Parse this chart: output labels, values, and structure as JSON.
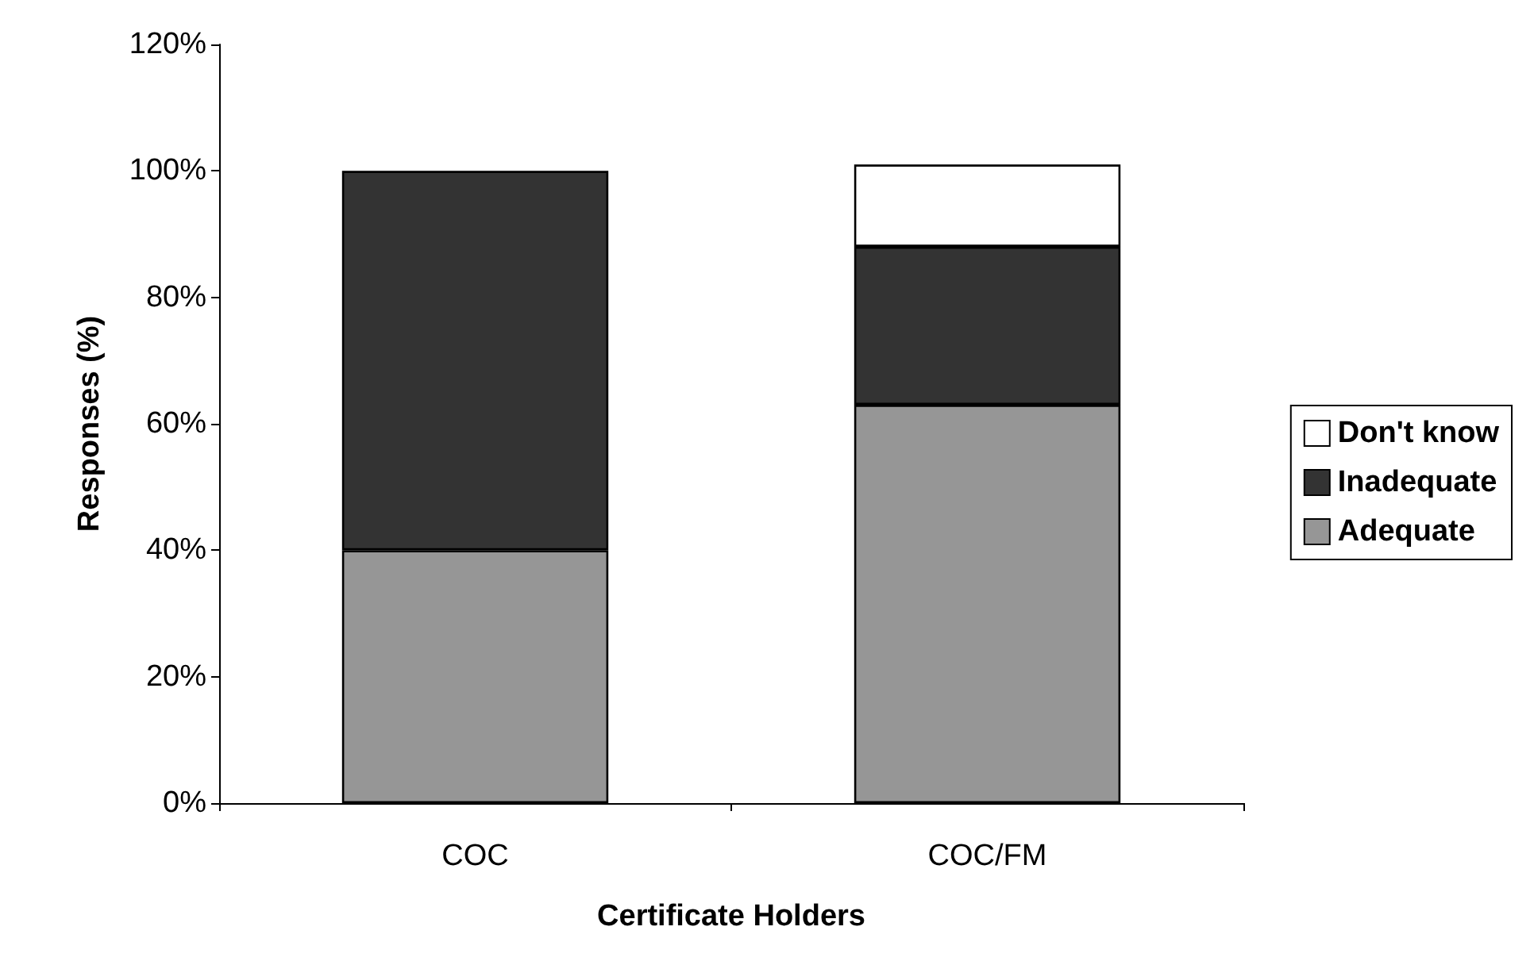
{
  "chart_data": {
    "type": "bar",
    "stacked": true,
    "xlabel": "Certificate Holders",
    "ylabel": "Responses (%)",
    "categories": [
      "COC",
      "COC/FM"
    ],
    "series": [
      {
        "name": "Adequate",
        "color": "#969696",
        "values": [
          40,
          63
        ]
      },
      {
        "name": "Inadequate",
        "color": "#333333",
        "values": [
          60,
          25
        ]
      },
      {
        "name": "Don't know",
        "color": "#ffffff",
        "values": [
          null,
          13
        ]
      }
    ],
    "ylim": [
      0,
      120
    ],
    "yticks": [
      {
        "value": 0,
        "label": "0%"
      },
      {
        "value": 20,
        "label": "20%"
      },
      {
        "value": 40,
        "label": "40%"
      },
      {
        "value": 60,
        "label": "60%"
      },
      {
        "value": 80,
        "label": "80%"
      },
      {
        "value": 100,
        "label": "100%"
      },
      {
        "value": 120,
        "label": "120%"
      }
    ],
    "grid": false,
    "legend": "right"
  }
}
